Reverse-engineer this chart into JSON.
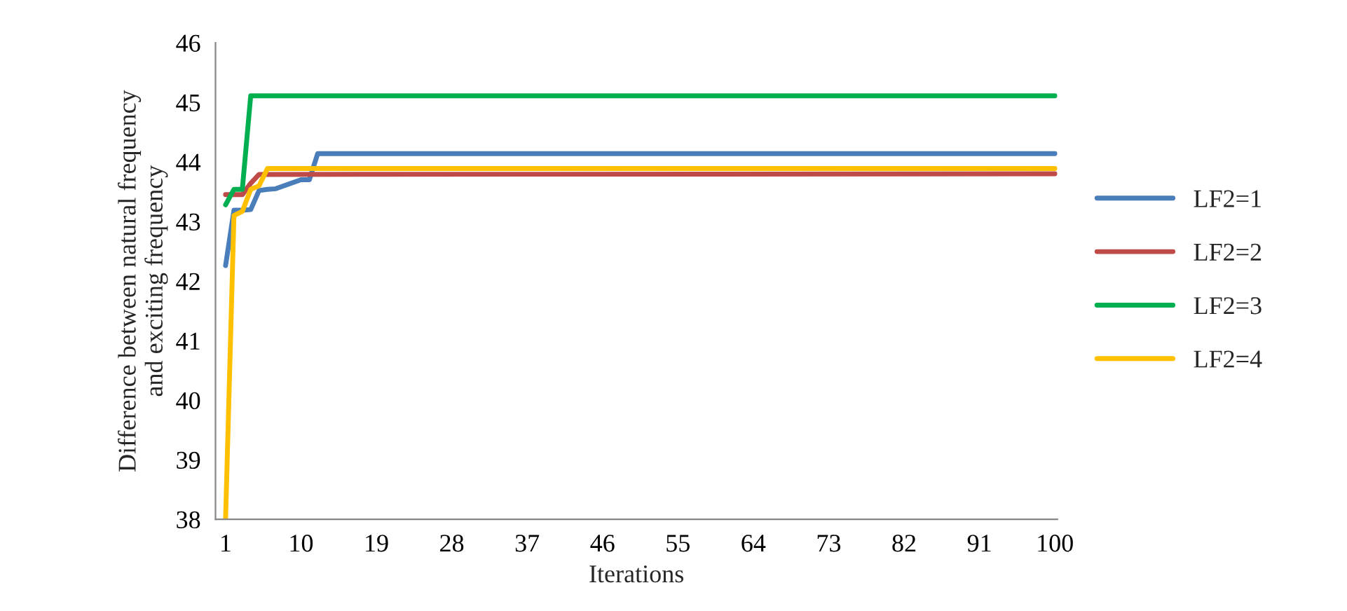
{
  "chart_data": {
    "type": "line",
    "xlabel": "Iterations",
    "ylabel": "Difference between natural frequency\nand exciting frequency",
    "xlim": [
      -0.2,
      100.3
    ],
    "xticks": [
      1,
      10,
      19,
      28,
      37,
      46,
      55,
      64,
      73,
      82,
      91,
      100
    ],
    "ylim": [
      38,
      46
    ],
    "yticks": [
      38,
      39,
      40,
      41,
      42,
      43,
      44,
      45,
      46
    ],
    "grid": false,
    "legend": "right",
    "marker": "none",
    "line_style": "solid",
    "series": [
      {
        "name": "LF2=1",
        "color": "#4a7ebb",
        "x": [
          1,
          2,
          3,
          4,
          5,
          6,
          7,
          8,
          9,
          10,
          11,
          12,
          100
        ],
        "values": [
          42.26,
          43.19,
          43.19,
          43.2,
          43.52,
          43.54,
          43.55,
          43.6,
          43.65,
          43.7,
          43.7,
          44.14,
          44.14
        ]
      },
      {
        "name": "LF2=2",
        "color": "#be4b48",
        "x": [
          1,
          3,
          4,
          5,
          100
        ],
        "values": [
          43.45,
          43.45,
          43.64,
          43.79,
          43.8
        ]
      },
      {
        "name": "LF2=3",
        "color": "#00b050",
        "x": [
          1,
          2,
          3,
          4,
          100
        ],
        "values": [
          43.28,
          43.54,
          43.54,
          45.11,
          45.11
        ]
      },
      {
        "name": "LF2=4",
        "color": "#ffc000",
        "x": [
          1,
          2,
          3,
          4,
          5,
          6,
          100
        ],
        "values": [
          38,
          43.1,
          43.17,
          43.54,
          43.6,
          43.89,
          43.89
        ]
      }
    ]
  }
}
